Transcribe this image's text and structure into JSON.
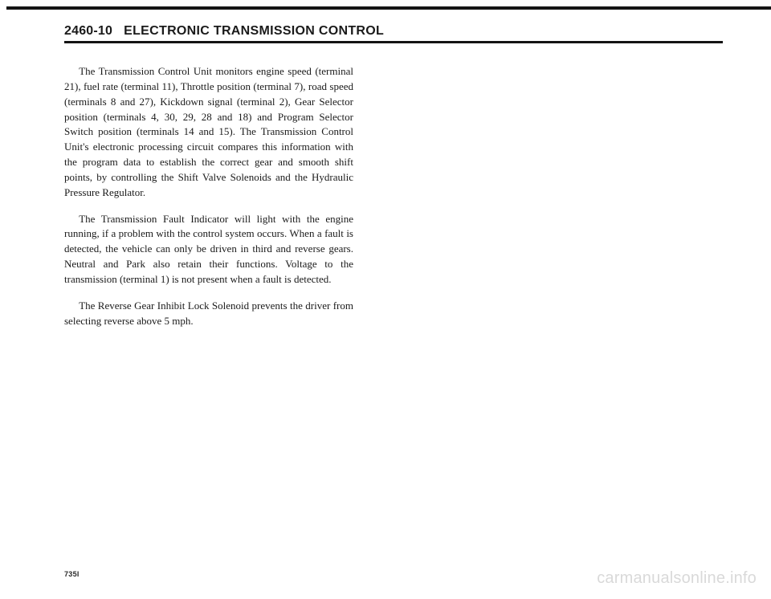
{
  "header": {
    "page_number": "2460-10",
    "title": "ELECTRONIC TRANSMISSION CONTROL"
  },
  "paragraphs": {
    "p1": "The Transmission Control Unit monitors engine speed (terminal 21), fuel rate (terminal 11), Throttle position (terminal 7), road speed (terminals 8 and 27), Kickdown signal (terminal 2), Gear Selector position (terminals 4, 30, 29, 28 and 18) and Program Selector Switch position (terminals 14 and 15). The Transmission Control Unit's electronic processing circuit compares this information with the program data to establish the correct gear and smooth shift points, by controlling the Shift Valve Solenoids and the Hydraulic Pressure Regulator.",
    "p2": "The Transmission Fault Indicator will light with the engine running, if a problem with the control system occurs. When a fault is detected, the vehicle can only be driven in third and reverse gears. Neutral and Park also retain their functions. Voltage to the transmission (terminal 1) is not present when a fault is detected.",
    "p3": "The Reverse Gear Inhibit Lock Solenoid prevents the driver from selecting reverse above 5 mph."
  },
  "footer": {
    "code": "735I"
  },
  "watermark": "carmanualsonline.info"
}
